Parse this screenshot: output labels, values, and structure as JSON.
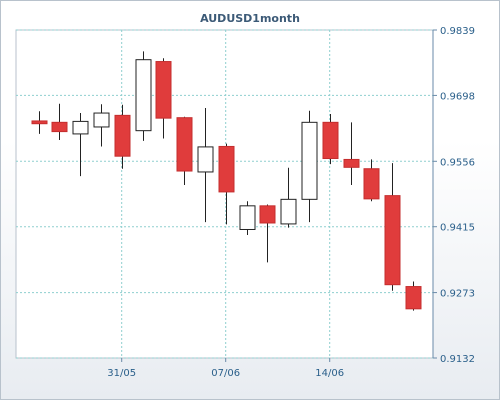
{
  "chart_data": {
    "type": "candlestick",
    "title": "AUDUSD1month",
    "ylim": [
      0.9132,
      0.9839
    ],
    "y_ticks": [
      "0.9839",
      "0.9698",
      "0.9556",
      "0.9415",
      "0.9273",
      "0.9132"
    ],
    "x_ticks": [
      {
        "label": "31/05",
        "index": 4
      },
      {
        "label": "07/06",
        "index": 9
      },
      {
        "label": "14/06",
        "index": 14
      }
    ],
    "grid": true,
    "colors": {
      "up": "#ffffff",
      "down": "#e03c3c",
      "wick": "#222222",
      "grid": "#8fcfcf",
      "text": "#2a5f8a"
    },
    "candles": [
      {
        "open": 0.9643,
        "high": 0.9664,
        "low": 0.9615,
        "close": 0.9637
      },
      {
        "open": 0.964,
        "high": 0.968,
        "low": 0.9602,
        "close": 0.962
      },
      {
        "open": 0.9615,
        "high": 0.966,
        "low": 0.9524,
        "close": 0.9642
      },
      {
        "open": 0.963,
        "high": 0.9679,
        "low": 0.9588,
        "close": 0.966
      },
      {
        "open": 0.9655,
        "high": 0.9678,
        "low": 0.954,
        "close": 0.9567
      },
      {
        "open": 0.9622,
        "high": 0.9793,
        "low": 0.96,
        "close": 0.9775
      },
      {
        "open": 0.9771,
        "high": 0.9778,
        "low": 0.9605,
        "close": 0.9649
      },
      {
        "open": 0.965,
        "high": 0.9652,
        "low": 0.9505,
        "close": 0.9535
      },
      {
        "open": 0.9533,
        "high": 0.9671,
        "low": 0.9425,
        "close": 0.9587
      },
      {
        "open": 0.9588,
        "high": 0.9594,
        "low": 0.942,
        "close": 0.949
      },
      {
        "open": 0.9409,
        "high": 0.947,
        "low": 0.9397,
        "close": 0.946
      },
      {
        "open": 0.946,
        "high": 0.9463,
        "low": 0.9338,
        "close": 0.9423
      },
      {
        "open": 0.9421,
        "high": 0.9542,
        "low": 0.9413,
        "close": 0.9474
      },
      {
        "open": 0.9474,
        "high": 0.9665,
        "low": 0.9425,
        "close": 0.964
      },
      {
        "open": 0.964,
        "high": 0.9658,
        "low": 0.955,
        "close": 0.9562
      },
      {
        "open": 0.956,
        "high": 0.964,
        "low": 0.9505,
        "close": 0.9543
      },
      {
        "open": 0.954,
        "high": 0.956,
        "low": 0.947,
        "close": 0.9475
      },
      {
        "open": 0.9482,
        "high": 0.9552,
        "low": 0.9277,
        "close": 0.929
      },
      {
        "open": 0.9286,
        "high": 0.9297,
        "low": 0.9234,
        "close": 0.9238
      }
    ]
  }
}
